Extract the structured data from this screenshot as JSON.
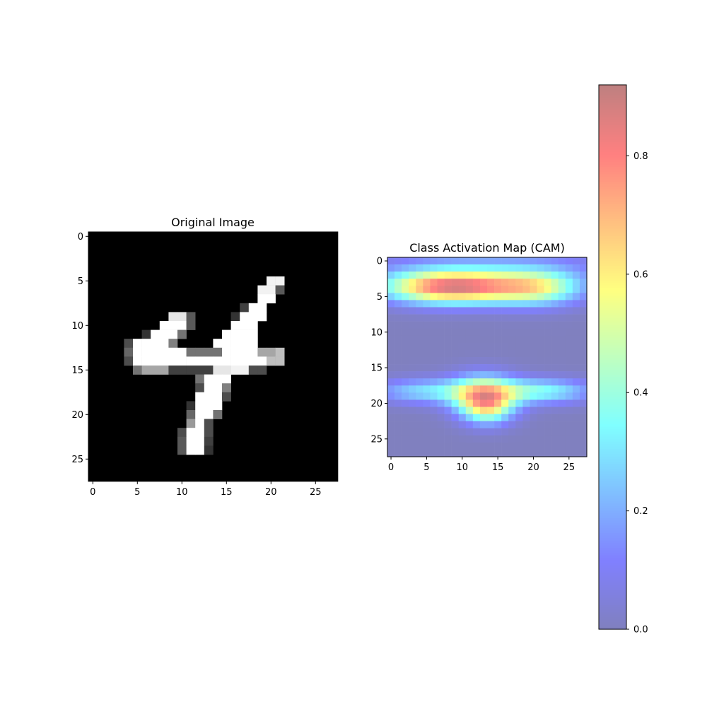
{
  "chart_data": [
    {
      "type": "heatmap",
      "title": "Original Image",
      "colormap": "gray",
      "rows": 28,
      "cols": 28,
      "xlim": [
        -0.5,
        27.5
      ],
      "ylim": [
        27.5,
        -0.5
      ],
      "xticks": [
        0,
        5,
        10,
        15,
        20,
        25
      ],
      "yticks": [
        0,
        5,
        10,
        15,
        20,
        25
      ],
      "strokes": [
        {
          "r": 5,
          "c0": 20,
          "c1": 21,
          "v": 0.95
        },
        {
          "r": 5,
          "c0": 21,
          "c1": 21,
          "v": 0.5
        },
        {
          "r": 6,
          "c0": 19,
          "c1": 20,
          "v": 0.95
        },
        {
          "r": 6,
          "c0": 21,
          "c1": 21,
          "v": 0.35
        },
        {
          "r": 7,
          "c0": 19,
          "c1": 20,
          "v": 1.0
        },
        {
          "r": 8,
          "c0": 18,
          "c1": 19,
          "v": 1.0
        },
        {
          "r": 8,
          "c0": 17,
          "c1": 17,
          "v": 0.25
        },
        {
          "r": 9,
          "c0": 9,
          "c1": 10,
          "v": 0.9
        },
        {
          "r": 9,
          "c0": 11,
          "c1": 11,
          "v": 0.35
        },
        {
          "r": 9,
          "c0": 17,
          "c1": 19,
          "v": 1.0
        },
        {
          "r": 9,
          "c0": 16,
          "c1": 16,
          "v": 0.2
        },
        {
          "r": 10,
          "c0": 8,
          "c1": 10,
          "v": 1.0
        },
        {
          "r": 10,
          "c0": 11,
          "c1": 11,
          "v": 0.35
        },
        {
          "r": 10,
          "c0": 16,
          "c1": 18,
          "v": 1.0
        },
        {
          "r": 11,
          "c0": 7,
          "c1": 9,
          "v": 1.0
        },
        {
          "r": 11,
          "c0": 10,
          "c1": 10,
          "v": 0.45
        },
        {
          "r": 11,
          "c0": 6,
          "c1": 6,
          "v": 0.2
        },
        {
          "r": 11,
          "c0": 15,
          "c1": 18,
          "v": 1.0
        },
        {
          "r": 12,
          "c0": 5,
          "c1": 8,
          "v": 1.0
        },
        {
          "r": 12,
          "c0": 9,
          "c1": 9,
          "v": 0.5
        },
        {
          "r": 12,
          "c0": 14,
          "c1": 18,
          "v": 1.0
        },
        {
          "r": 12,
          "c0": 4,
          "c1": 4,
          "v": 0.3
        },
        {
          "r": 13,
          "c0": 5,
          "c1": 10,
          "v": 1.0
        },
        {
          "r": 13,
          "c0": 11,
          "c1": 14,
          "v": 0.45
        },
        {
          "r": 13,
          "c0": 15,
          "c1": 18,
          "v": 1.0
        },
        {
          "r": 13,
          "c0": 19,
          "c1": 20,
          "v": 0.65
        },
        {
          "r": 13,
          "c0": 21,
          "c1": 21,
          "v": 0.75
        },
        {
          "r": 13,
          "c0": 4,
          "c1": 4,
          "v": 0.4
        },
        {
          "r": 14,
          "c0": 5,
          "c1": 19,
          "v": 1.0
        },
        {
          "r": 14,
          "c0": 20,
          "c1": 21,
          "v": 0.75
        },
        {
          "r": 14,
          "c0": 4,
          "c1": 4,
          "v": 0.3
        },
        {
          "r": 15,
          "c0": 6,
          "c1": 8,
          "v": 0.65
        },
        {
          "r": 15,
          "c0": 9,
          "c1": 13,
          "v": 0.25
        },
        {
          "r": 15,
          "c0": 14,
          "c1": 15,
          "v": 0.9
        },
        {
          "r": 15,
          "c0": 16,
          "c1": 17,
          "v": 0.95
        },
        {
          "r": 15,
          "c0": 18,
          "c1": 19,
          "v": 0.3
        },
        {
          "r": 15,
          "c0": 5,
          "c1": 5,
          "v": 0.45
        },
        {
          "r": 16,
          "c0": 13,
          "c1": 15,
          "v": 1.0
        },
        {
          "r": 16,
          "c0": 12,
          "c1": 12,
          "v": 0.45
        },
        {
          "r": 17,
          "c0": 13,
          "c1": 14,
          "v": 1.0
        },
        {
          "r": 17,
          "c0": 15,
          "c1": 15,
          "v": 0.5
        },
        {
          "r": 17,
          "c0": 12,
          "c1": 12,
          "v": 0.3
        },
        {
          "r": 18,
          "c0": 12,
          "c1": 14,
          "v": 1.0
        },
        {
          "r": 18,
          "c0": 15,
          "c1": 15,
          "v": 0.3
        },
        {
          "r": 19,
          "c0": 12,
          "c1": 14,
          "v": 1.0
        },
        {
          "r": 19,
          "c0": 11,
          "c1": 11,
          "v": 0.2
        },
        {
          "r": 20,
          "c0": 12,
          "c1": 13,
          "v": 1.0
        },
        {
          "r": 20,
          "c0": 11,
          "c1": 11,
          "v": 0.4
        },
        {
          "r": 20,
          "c0": 14,
          "c1": 14,
          "v": 0.45
        },
        {
          "r": 21,
          "c0": 12,
          "c1": 12,
          "v": 1.0
        },
        {
          "r": 21,
          "c0": 11,
          "c1": 11,
          "v": 0.6
        },
        {
          "r": 21,
          "c0": 13,
          "c1": 13,
          "v": 0.3
        },
        {
          "r": 22,
          "c0": 11,
          "c1": 12,
          "v": 1.0
        },
        {
          "r": 22,
          "c0": 10,
          "c1": 10,
          "v": 0.3
        },
        {
          "r": 22,
          "c0": 13,
          "c1": 13,
          "v": 0.3
        },
        {
          "r": 23,
          "c0": 11,
          "c1": 12,
          "v": 1.0
        },
        {
          "r": 23,
          "c0": 10,
          "c1": 10,
          "v": 0.35
        },
        {
          "r": 23,
          "c0": 13,
          "c1": 13,
          "v": 0.25
        },
        {
          "r": 24,
          "c0": 11,
          "c1": 12,
          "v": 1.0
        },
        {
          "r": 24,
          "c0": 10,
          "c1": 10,
          "v": 0.35
        },
        {
          "r": 24,
          "c0": 13,
          "c1": 13,
          "v": 0.2
        }
      ]
    },
    {
      "type": "heatmap",
      "title": "Class Activation Map (CAM)",
      "colormap": "jet",
      "alpha": 0.5,
      "rows": 28,
      "cols": 28,
      "xlim": [
        -0.5,
        27.5
      ],
      "ylim": [
        27.5,
        -0.5
      ],
      "xticks": [
        0,
        5,
        10,
        15,
        20,
        25
      ],
      "yticks": [
        0,
        5,
        10,
        15,
        20,
        25
      ],
      "vmin": 0.0,
      "vmax": 0.92,
      "hotspots": [
        {
          "cy": 3.7,
          "cx": 8.5,
          "sy": 1.6,
          "sx": 6.5,
          "amp": 0.82
        },
        {
          "cy": 3.8,
          "cx": 20.5,
          "sy": 1.7,
          "sx": 4.5,
          "amp": 0.45
        },
        {
          "cy": 1.0,
          "cx": 14.0,
          "sy": 2.2,
          "sx": 12.0,
          "amp": 0.15
        },
        {
          "cy": 18.8,
          "cx": 13.0,
          "sy": 1.9,
          "sx": 3.2,
          "amp": 0.55
        },
        {
          "cy": 20.8,
          "cx": 13.5,
          "sy": 1.6,
          "sx": 2.5,
          "amp": 0.35
        },
        {
          "cy": 18.3,
          "cx": 5.0,
          "sy": 1.2,
          "sx": 5.0,
          "amp": 0.28
        },
        {
          "cy": 18.3,
          "cx": 21.0,
          "sy": 1.2,
          "sx": 5.0,
          "amp": 0.35
        }
      ],
      "colorbar": {
        "ticks": [
          0.0,
          0.2,
          0.4,
          0.6,
          0.8
        ],
        "tick_labels": [
          "0.0",
          "0.2",
          "0.4",
          "0.6",
          "0.8"
        ]
      }
    }
  ]
}
